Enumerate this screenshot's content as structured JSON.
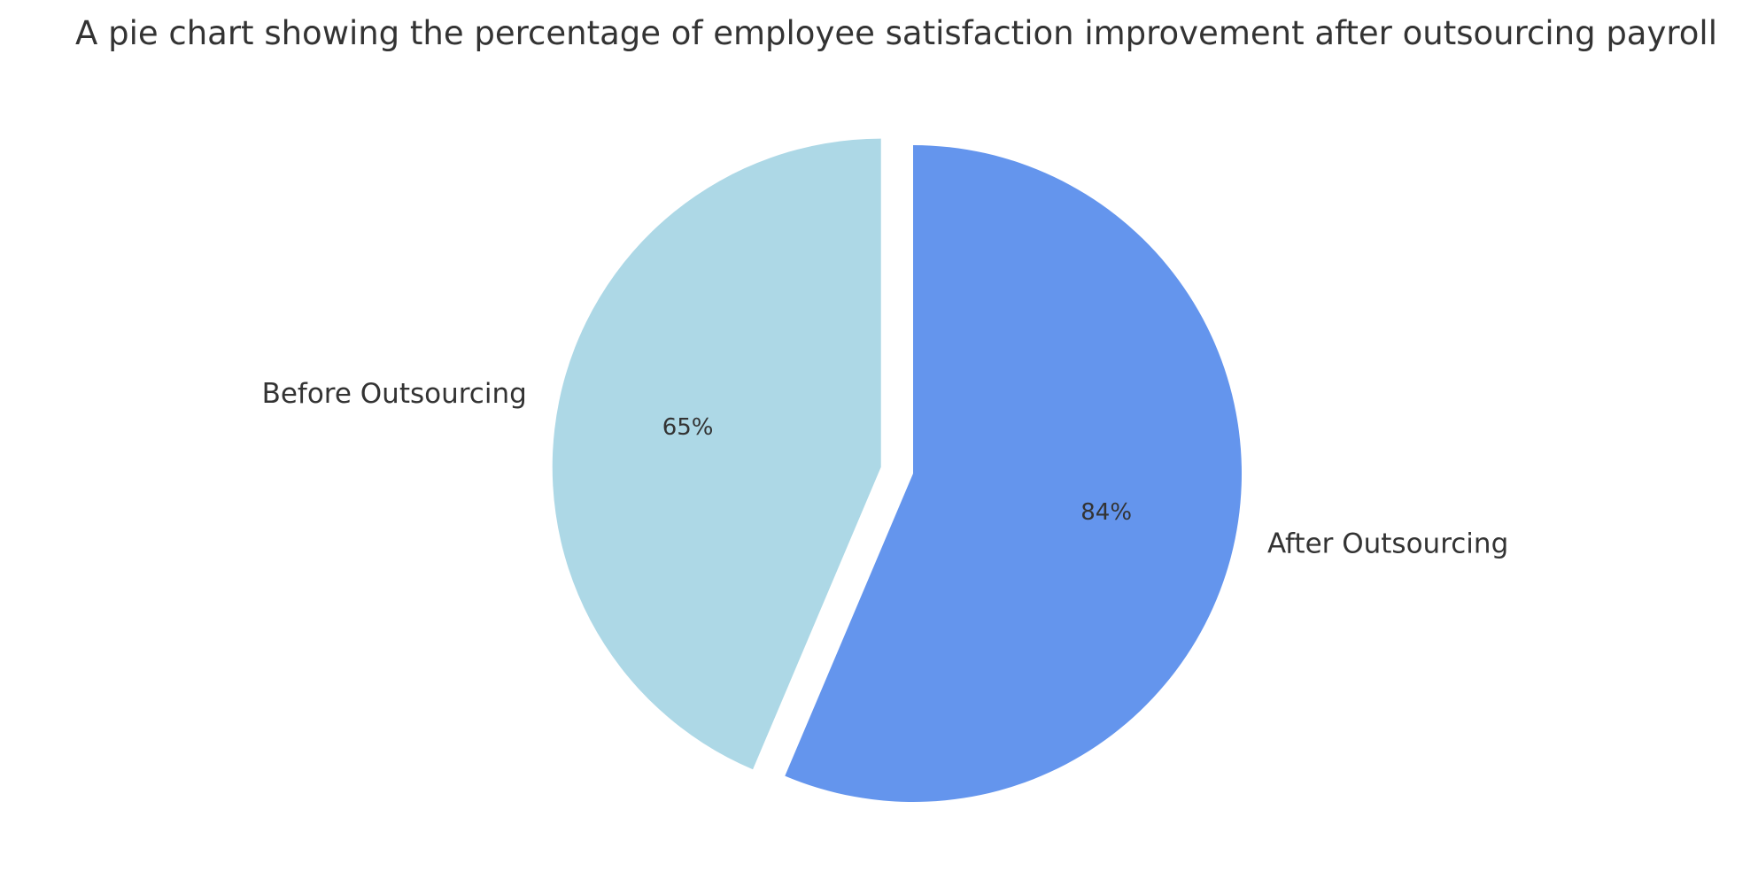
{
  "chart_data": {
    "type": "pie",
    "title": "A pie chart showing the percentage of employee satisfaction improvement after outsourcing payroll",
    "categories": [
      "Before Outsourcing",
      "After Outsourcing"
    ],
    "values": [
      65,
      84
    ],
    "value_labels": [
      "65%",
      "84%"
    ],
    "colors": [
      "#add8e6",
      "#6495ed"
    ],
    "exploded": [
      true,
      false
    ],
    "start_angle_deg": 90,
    "direction": "counterclockwise"
  }
}
